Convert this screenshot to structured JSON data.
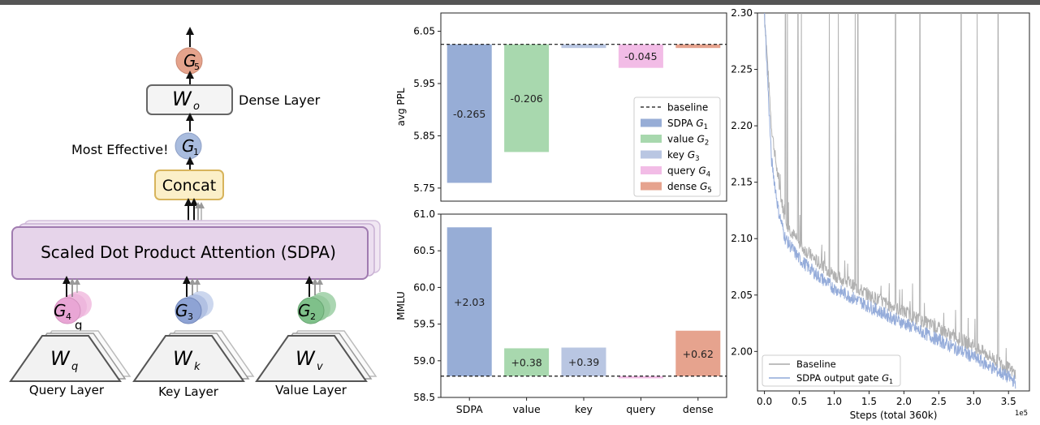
{
  "diagram": {
    "g5": "G",
    "g5_sub": "5",
    "wo": "W",
    "wo_sub": "o",
    "dense_label": "Dense Layer",
    "most_effective": "Most Effective!",
    "g1": "G",
    "g1_sub": "1",
    "concat": "Concat",
    "sdpa": "Scaled Dot Product Attention (SDPA)",
    "g4": "G",
    "g4_sub": "4",
    "g3": "G",
    "g3_sub": "3",
    "g2": "G",
    "g2_sub": "2",
    "stray_g": "g",
    "wq": "W",
    "wq_sub": "q",
    "wk": "W",
    "wk_sub": "k",
    "wv": "W",
    "wv_sub": "v",
    "query_layer": "Query Layer",
    "key_layer": "Key Layer",
    "value_layer": "Value Layer",
    "colors": {
      "g5": "#e5a38c",
      "g1": "#a9bcde",
      "g4": "#e9a6d5",
      "g3": "#8ea3d4",
      "g2": "#7fc08a",
      "sdpa_fill": "#e6d4ea",
      "sdpa_border": "#a07bb0",
      "concat_fill": "#fbefc8",
      "concat_border": "#d7b45c"
    }
  },
  "chart_data": [
    {
      "type": "bar",
      "ylabel": "avg PPL",
      "categories": [
        "SDPA",
        "value",
        "key",
        "query",
        "dense"
      ],
      "baseline": 6.025,
      "values": [
        5.76,
        5.819,
        6.018,
        5.98,
        6.018
      ],
      "labels": [
        "-0.265",
        "-0.206",
        "",
        "-0.045",
        ""
      ],
      "colors": [
        "#97add6",
        "#a8d8ae",
        "#b9c6e2",
        "#f2bce6",
        "#e6a38e"
      ],
      "ylim": [
        5.725,
        6.085
      ],
      "yticks": [
        "5.75",
        "5.85",
        "5.95",
        "6.05"
      ],
      "legend": {
        "position": "right",
        "items": [
          {
            "label": "baseline",
            "sub": ""
          },
          {
            "label": "SDPA G",
            "sub": "1"
          },
          {
            "label": "value G",
            "sub": "2"
          },
          {
            "label": "key G",
            "sub": "3"
          },
          {
            "label": "query G",
            "sub": "4"
          },
          {
            "label": "dense G",
            "sub": "5"
          }
        ]
      }
    },
    {
      "type": "bar",
      "ylabel": "MMLU",
      "categories": [
        "SDPA",
        "value",
        "key",
        "query",
        "dense"
      ],
      "baseline": 58.79,
      "values": [
        60.82,
        59.17,
        59.18,
        58.76,
        59.41
      ],
      "labels": [
        "+2.03",
        "+0.38",
        "+0.39",
        "",
        "+0.62"
      ],
      "colors": [
        "#97add6",
        "#a8d8ae",
        "#b9c6e2",
        "#f2bce6",
        "#e6a38e"
      ],
      "ylim": [
        58.5,
        61.0
      ],
      "yticks": [
        "58.5",
        "59.0",
        "59.5",
        "60.0",
        "60.5",
        "61.0"
      ]
    },
    {
      "type": "line",
      "xlabel": "Steps (total 360k)",
      "x_exponent": "1e5",
      "xlim": [
        -0.1,
        3.8
      ],
      "ylim": [
        1.965,
        2.3
      ],
      "xticks": [
        "0.0",
        "0.5",
        "1.0",
        "1.5",
        "2.0",
        "2.5",
        "3.0",
        "3.5"
      ],
      "yticks": [
        "2.00",
        "2.05",
        "2.10",
        "2.15",
        "2.20",
        "2.25",
        "2.30"
      ],
      "series": [
        {
          "name": "Baseline",
          "sub": "",
          "color": "#a9a9a9",
          "x": [
            0.0,
            0.1,
            0.2,
            0.3,
            0.5,
            0.75,
            1.0,
            1.5,
            2.0,
            2.5,
            3.0,
            3.5,
            3.6
          ],
          "y": [
            2.3,
            2.2,
            2.15,
            2.115,
            2.095,
            2.08,
            2.068,
            2.05,
            2.035,
            2.02,
            2.005,
            1.985,
            1.98
          ]
        },
        {
          "name": "SDPA output gate G",
          "sub": "1",
          "color": "#8fa8d8",
          "x": [
            0.0,
            0.1,
            0.2,
            0.3,
            0.5,
            0.75,
            1.0,
            1.5,
            2.0,
            2.5,
            3.0,
            3.5,
            3.6
          ],
          "y": [
            2.3,
            2.17,
            2.125,
            2.1,
            2.082,
            2.068,
            2.056,
            2.04,
            2.025,
            2.01,
            1.995,
            1.977,
            1.973
          ]
        }
      ],
      "spikes_x": [
        0.0,
        0.3,
        0.33,
        0.48,
        0.53,
        0.93,
        1.06,
        1.3,
        1.34,
        1.88,
        2.23,
        2.82,
        3.05,
        3.35
      ],
      "legend": {
        "position": "lower left"
      }
    }
  ]
}
